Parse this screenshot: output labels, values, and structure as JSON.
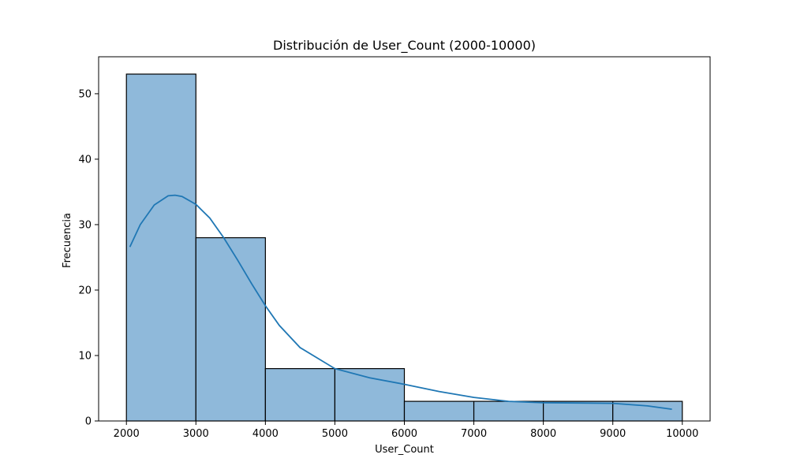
{
  "chart_data": {
    "type": "bar",
    "title": "Distribución de User_Count (2000-10000)",
    "xlabel": "User_Count",
    "ylabel": "Frecuencia",
    "bins": [
      {
        "start": 2000,
        "end": 3000,
        "count": 53
      },
      {
        "start": 3000,
        "end": 4000,
        "count": 28
      },
      {
        "start": 4000,
        "end": 5000,
        "count": 8
      },
      {
        "start": 5000,
        "end": 6000,
        "count": 8
      },
      {
        "start": 6000,
        "end": 7000,
        "count": 3
      },
      {
        "start": 7000,
        "end": 8000,
        "count": 3
      },
      {
        "start": 8000,
        "end": 9000,
        "count": 3
      },
      {
        "start": 9000,
        "end": 10000,
        "count": 3
      }
    ],
    "kde": {
      "x": [
        2050,
        2200,
        2400,
        2600,
        2700,
        2800,
        3000,
        3200,
        3400,
        3600,
        3800,
        4000,
        4200,
        4500,
        5000,
        5500,
        6000,
        6500,
        7000,
        7500,
        8000,
        8500,
        9000,
        9500,
        9850
      ],
      "y": [
        26.6,
        30.0,
        33.0,
        34.4,
        34.5,
        34.3,
        33.1,
        31.0,
        28.0,
        24.6,
        21.0,
        17.6,
        14.6,
        11.2,
        8.0,
        6.6,
        5.6,
        4.5,
        3.6,
        3.0,
        2.8,
        2.75,
        2.7,
        2.3,
        1.8
      ]
    },
    "xticks": [
      2000,
      3000,
      4000,
      5000,
      6000,
      7000,
      8000,
      9000,
      10000
    ],
    "yticks": [
      0,
      10,
      20,
      30,
      40,
      50
    ],
    "xlim": [
      1600,
      10400
    ],
    "ylim": [
      0,
      55.65
    ],
    "grid": false,
    "legend": "none",
    "colors": {
      "bar_fill": "#8fb9da",
      "bar_edge": "#000000",
      "kde_line": "#1f77b4"
    }
  }
}
